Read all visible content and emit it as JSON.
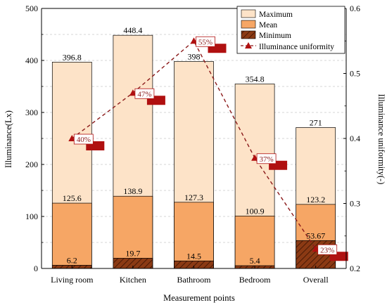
{
  "chart_data": {
    "type": "bar",
    "categories": [
      "Living room",
      "Kitchen",
      "Bathroom",
      "Bedroom",
      "Overall"
    ],
    "series": [
      {
        "name": "Maximum",
        "values": [
          396.8,
          448.4,
          398,
          354.8,
          271
        ],
        "labels": [
          "396.8",
          "448.4",
          "398",
          "354.8",
          "271"
        ]
      },
      {
        "name": "Mean",
        "values": [
          125.6,
          138.9,
          127.3,
          100.9,
          123.2
        ],
        "labels": [
          "125.6",
          "138.9",
          "127.3",
          "100.9",
          "123.2"
        ]
      },
      {
        "name": "Minimum",
        "values": [
          6.2,
          19.7,
          14.5,
          5.4,
          53.67
        ],
        "labels": [
          "6.2",
          "19.7",
          "14.5",
          "5.4",
          "53.67"
        ]
      }
    ],
    "line_series": {
      "name": "Illuminance uniformity",
      "axis": "right",
      "values": [
        0.4,
        0.47,
        0.55,
        0.37,
        0.23
      ],
      "labels": [
        "40%",
        "47%",
        "55%",
        "37%",
        "23%"
      ]
    },
    "xlabel": "Measurement points",
    "ylabel": "Illuminance(Lx)",
    "y2label": "Illuminance uniformity(-)",
    "ylim": [
      0,
      500
    ],
    "y2lim": [
      0.2,
      0.6
    ],
    "yticks": [
      "0",
      "100",
      "200",
      "300",
      "400",
      "500"
    ],
    "y2ticks": [
      "0.2",
      "0.3",
      "0.4",
      "0.5",
      "0.6"
    ],
    "legend_position": "top-right",
    "grid": "horizontal-dashed",
    "colors": {
      "maximum": "#fde3c8",
      "mean": "#f6a665",
      "minimum": "#8b3a14",
      "line": "#8b1a1a",
      "tag": "#b01010"
    }
  }
}
